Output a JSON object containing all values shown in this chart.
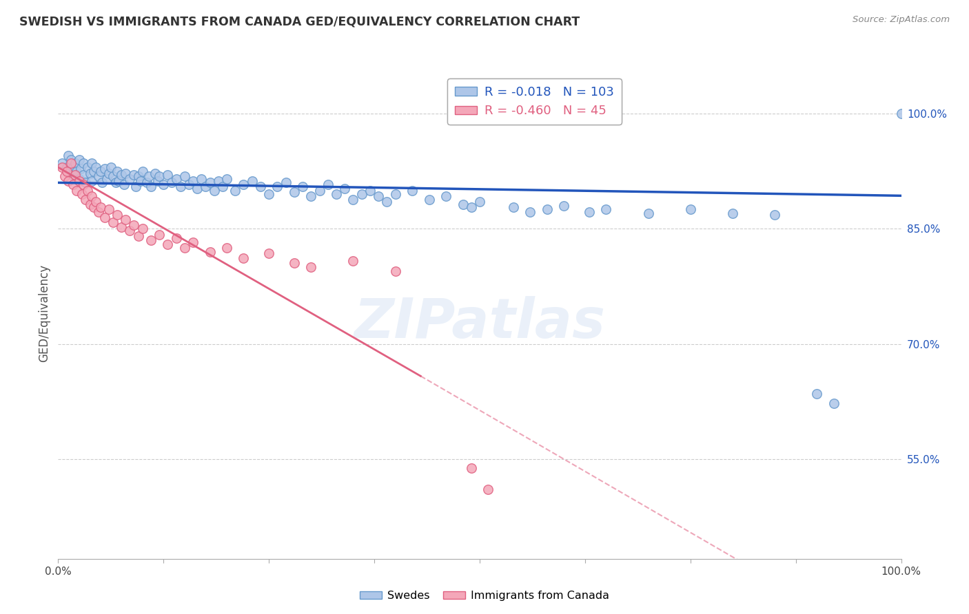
{
  "title": "SWEDISH VS IMMIGRANTS FROM CANADA GED/EQUIVALENCY CORRELATION CHART",
  "source": "Source: ZipAtlas.com",
  "ylabel": "GED/Equivalency",
  "ytick_labels": [
    "100.0%",
    "85.0%",
    "70.0%",
    "55.0%"
  ],
  "ytick_values": [
    1.0,
    0.85,
    0.7,
    0.55
  ],
  "legend_entries": [
    {
      "label": "Swedes",
      "color": "#aec6e8",
      "R": "-0.018",
      "N": "103"
    },
    {
      "label": "Immigrants from Canada",
      "color": "#f4a7b9",
      "R": "-0.460",
      "N": "45"
    }
  ],
  "watermark": "ZIPatlas",
  "blue_scatter": [
    [
      0.005,
      0.935
    ],
    [
      0.01,
      0.93
    ],
    [
      0.012,
      0.945
    ],
    [
      0.013,
      0.925
    ],
    [
      0.015,
      0.94
    ],
    [
      0.017,
      0.92
    ],
    [
      0.018,
      0.93
    ],
    [
      0.02,
      0.935
    ],
    [
      0.022,
      0.925
    ],
    [
      0.025,
      0.94
    ],
    [
      0.025,
      0.915
    ],
    [
      0.027,
      0.928
    ],
    [
      0.03,
      0.935
    ],
    [
      0.03,
      0.92
    ],
    [
      0.032,
      0.91
    ],
    [
      0.035,
      0.93
    ],
    [
      0.038,
      0.922
    ],
    [
      0.04,
      0.935
    ],
    [
      0.04,
      0.912
    ],
    [
      0.042,
      0.925
    ],
    [
      0.045,
      0.93
    ],
    [
      0.048,
      0.918
    ],
    [
      0.05,
      0.925
    ],
    [
      0.052,
      0.91
    ],
    [
      0.055,
      0.928
    ],
    [
      0.058,
      0.915
    ],
    [
      0.06,
      0.922
    ],
    [
      0.063,
      0.93
    ],
    [
      0.065,
      0.918
    ],
    [
      0.068,
      0.91
    ],
    [
      0.07,
      0.925
    ],
    [
      0.072,
      0.912
    ],
    [
      0.075,
      0.92
    ],
    [
      0.078,
      0.908
    ],
    [
      0.08,
      0.922
    ],
    [
      0.085,
      0.915
    ],
    [
      0.09,
      0.92
    ],
    [
      0.092,
      0.905
    ],
    [
      0.095,
      0.918
    ],
    [
      0.098,
      0.912
    ],
    [
      0.1,
      0.925
    ],
    [
      0.105,
      0.91
    ],
    [
      0.108,
      0.918
    ],
    [
      0.11,
      0.905
    ],
    [
      0.115,
      0.922
    ],
    [
      0.118,
      0.912
    ],
    [
      0.12,
      0.918
    ],
    [
      0.125,
      0.908
    ],
    [
      0.13,
      0.92
    ],
    [
      0.135,
      0.91
    ],
    [
      0.14,
      0.915
    ],
    [
      0.145,
      0.905
    ],
    [
      0.15,
      0.918
    ],
    [
      0.155,
      0.908
    ],
    [
      0.16,
      0.912
    ],
    [
      0.165,
      0.902
    ],
    [
      0.17,
      0.915
    ],
    [
      0.175,
      0.905
    ],
    [
      0.18,
      0.91
    ],
    [
      0.185,
      0.9
    ],
    [
      0.19,
      0.912
    ],
    [
      0.195,
      0.905
    ],
    [
      0.2,
      0.915
    ],
    [
      0.21,
      0.9
    ],
    [
      0.22,
      0.908
    ],
    [
      0.23,
      0.912
    ],
    [
      0.24,
      0.905
    ],
    [
      0.25,
      0.895
    ],
    [
      0.26,
      0.905
    ],
    [
      0.27,
      0.91
    ],
    [
      0.28,
      0.898
    ],
    [
      0.29,
      0.905
    ],
    [
      0.3,
      0.892
    ],
    [
      0.31,
      0.9
    ],
    [
      0.32,
      0.908
    ],
    [
      0.33,
      0.895
    ],
    [
      0.34,
      0.902
    ],
    [
      0.35,
      0.888
    ],
    [
      0.36,
      0.895
    ],
    [
      0.37,
      0.9
    ],
    [
      0.38,
      0.892
    ],
    [
      0.39,
      0.885
    ],
    [
      0.4,
      0.895
    ],
    [
      0.42,
      0.9
    ],
    [
      0.44,
      0.888
    ],
    [
      0.46,
      0.892
    ],
    [
      0.48,
      0.882
    ],
    [
      0.49,
      0.878
    ],
    [
      0.5,
      0.885
    ],
    [
      0.54,
      0.878
    ],
    [
      0.56,
      0.872
    ],
    [
      0.58,
      0.875
    ],
    [
      0.6,
      0.88
    ],
    [
      0.63,
      0.872
    ],
    [
      0.65,
      0.875
    ],
    [
      0.7,
      0.87
    ],
    [
      0.75,
      0.875
    ],
    [
      0.8,
      0.87
    ],
    [
      0.85,
      0.868
    ],
    [
      0.9,
      0.635
    ],
    [
      0.92,
      0.622
    ],
    [
      1.0,
      1.0
    ]
  ],
  "pink_scatter": [
    [
      0.005,
      0.93
    ],
    [
      0.008,
      0.918
    ],
    [
      0.01,
      0.925
    ],
    [
      0.012,
      0.912
    ],
    [
      0.015,
      0.935
    ],
    [
      0.018,
      0.908
    ],
    [
      0.02,
      0.92
    ],
    [
      0.022,
      0.9
    ],
    [
      0.025,
      0.912
    ],
    [
      0.028,
      0.895
    ],
    [
      0.03,
      0.908
    ],
    [
      0.032,
      0.888
    ],
    [
      0.035,
      0.9
    ],
    [
      0.038,
      0.882
    ],
    [
      0.04,
      0.892
    ],
    [
      0.042,
      0.878
    ],
    [
      0.045,
      0.885
    ],
    [
      0.048,
      0.872
    ],
    [
      0.05,
      0.878
    ],
    [
      0.055,
      0.865
    ],
    [
      0.06,
      0.875
    ],
    [
      0.065,
      0.858
    ],
    [
      0.07,
      0.868
    ],
    [
      0.075,
      0.852
    ],
    [
      0.08,
      0.862
    ],
    [
      0.085,
      0.848
    ],
    [
      0.09,
      0.855
    ],
    [
      0.095,
      0.84
    ],
    [
      0.1,
      0.85
    ],
    [
      0.11,
      0.835
    ],
    [
      0.12,
      0.842
    ],
    [
      0.13,
      0.83
    ],
    [
      0.14,
      0.838
    ],
    [
      0.15,
      0.825
    ],
    [
      0.16,
      0.832
    ],
    [
      0.18,
      0.82
    ],
    [
      0.2,
      0.825
    ],
    [
      0.22,
      0.812
    ],
    [
      0.25,
      0.818
    ],
    [
      0.28,
      0.805
    ],
    [
      0.3,
      0.8
    ],
    [
      0.35,
      0.808
    ],
    [
      0.4,
      0.795
    ],
    [
      0.49,
      0.538
    ],
    [
      0.51,
      0.51
    ]
  ],
  "blue_line": {
    "x_start": 0.0,
    "x_end": 1.0,
    "y_start": 0.91,
    "y_end": 0.893
  },
  "pink_line_solid": {
    "x_start": 0.0,
    "x_end": 0.43,
    "y_start": 0.93,
    "y_end": 0.658
  },
  "pink_line_dashed": {
    "x_start": 0.43,
    "x_end": 1.0,
    "y_start": 0.658,
    "y_end": 0.295
  },
  "background_color": "#ffffff",
  "grid_color": "#cccccc",
  "blue_marker_color": "#aec6e8",
  "blue_marker_edge": "#6699cc",
  "pink_marker_color": "#f4a7b9",
  "pink_marker_edge": "#e06080",
  "blue_line_color": "#2255bb",
  "pink_line_color": "#e06080",
  "marker_size": 95,
  "xlim": [
    0.0,
    1.0
  ],
  "ylim": [
    0.42,
    1.06
  ],
  "x_ticks": [
    0.0,
    0.125,
    0.25,
    0.375,
    0.5,
    0.625,
    0.75,
    0.875,
    1.0
  ]
}
